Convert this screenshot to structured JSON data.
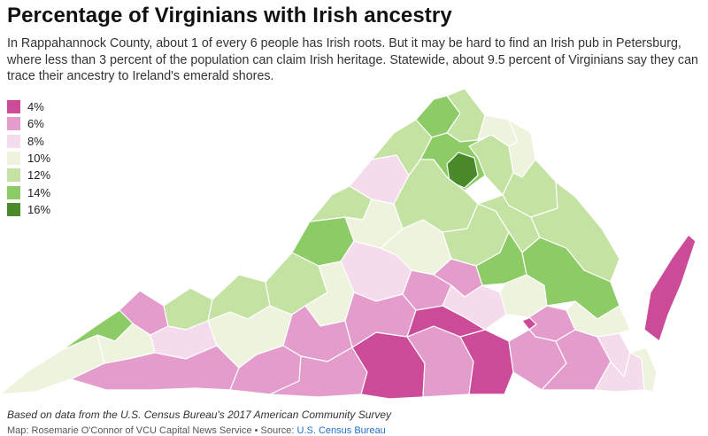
{
  "header": {
    "title": "Percentage of Virginians with Irish ancestry",
    "subtitle": "In Rappahannock County, about 1 of every 6 people has Irish roots. But it may be hard to find an Irish pub in Petersburg, where less than 3 percent of the population can claim Irish heritage. Statewide, about 9.5 percent of Virginians say they can trace their ancestry to Ireland's emerald shores."
  },
  "legend": [
    {
      "label": "4%",
      "color": "#cc4b99"
    },
    {
      "label": "6%",
      "color": "#e39ccc"
    },
    {
      "label": "8%",
      "color": "#f5dcec"
    },
    {
      "label": "10%",
      "color": "#eef3de"
    },
    {
      "label": "12%",
      "color": "#c4e3a3"
    },
    {
      "label": "14%",
      "color": "#8ccb66"
    },
    {
      "label": "16%",
      "color": "#4a8a2a"
    }
  ],
  "map": {
    "state_outline_color": "#ffffff",
    "regions": [
      {
        "name": "southwest-far",
        "bin": 3
      },
      {
        "name": "southwest-lee",
        "bin": 5
      },
      {
        "name": "southwest-wise",
        "bin": 3
      },
      {
        "name": "southwest-buchanan",
        "bin": 1
      },
      {
        "name": "southwest-tazewell",
        "bin": 4
      },
      {
        "name": "southwest-washington",
        "bin": 2
      },
      {
        "name": "southwest-grayson",
        "bin": 1
      },
      {
        "name": "southwest-smyth",
        "bin": 4
      },
      {
        "name": "new-river",
        "bin": 3
      },
      {
        "name": "roanoke",
        "bin": 4
      },
      {
        "name": "alleghany",
        "bin": 5
      },
      {
        "name": "highland",
        "bin": 4
      },
      {
        "name": "augusta",
        "bin": 3
      },
      {
        "name": "rockingham",
        "bin": 2
      },
      {
        "name": "shenandoah",
        "bin": 4
      },
      {
        "name": "frederick",
        "bin": 5
      },
      {
        "name": "loudoun",
        "bin": 4
      },
      {
        "name": "fauquier",
        "bin": 5
      },
      {
        "name": "rappahannock",
        "bin": 6
      },
      {
        "name": "culpeper",
        "bin": 4
      },
      {
        "name": "prince-william",
        "bin": 3
      },
      {
        "name": "fairfax",
        "bin": 3
      },
      {
        "name": "stafford",
        "bin": 4
      },
      {
        "name": "orange",
        "bin": 4
      },
      {
        "name": "albemarle",
        "bin": 3
      },
      {
        "name": "nelson",
        "bin": 2
      },
      {
        "name": "bedford",
        "bin": 3
      },
      {
        "name": "franklin",
        "bin": 1
      },
      {
        "name": "patrick",
        "bin": 1
      },
      {
        "name": "henry",
        "bin": 1
      },
      {
        "name": "pittsylvania",
        "bin": 0
      },
      {
        "name": "halifax",
        "bin": 1
      },
      {
        "name": "mecklenburg",
        "bin": 0
      },
      {
        "name": "lunenburg",
        "bin": 1
      },
      {
        "name": "nottoway",
        "bin": 0
      },
      {
        "name": "amelia",
        "bin": 1
      },
      {
        "name": "appomattox",
        "bin": 1
      },
      {
        "name": "buckingham",
        "bin": 2
      },
      {
        "name": "louisa",
        "bin": 4
      },
      {
        "name": "hanover",
        "bin": 4
      },
      {
        "name": "goochland",
        "bin": 5
      },
      {
        "name": "chesterfield",
        "bin": 3
      },
      {
        "name": "petersburg",
        "bin": 0
      },
      {
        "name": "prince-george",
        "bin": 1
      },
      {
        "name": "sussex",
        "bin": 1
      },
      {
        "name": "southampton",
        "bin": 1
      },
      {
        "name": "suffolk",
        "bin": 2
      },
      {
        "name": "chesapeake",
        "bin": 2
      },
      {
        "name": "virginia-beach",
        "bin": 3
      },
      {
        "name": "northern-neck",
        "bin": 4
      },
      {
        "name": "middle-peninsula",
        "bin": 5
      },
      {
        "name": "york",
        "bin": 3
      },
      {
        "name": "eastern-shore",
        "bin": 0
      }
    ]
  },
  "footer": {
    "note": "Based on data from the U.S. Census Bureau's 2017 American Community Survey",
    "credit": "Map: Rosemarie O'Connor of VCU Capital News Service • Source: ",
    "source_link": "U.S. Census Bureau"
  }
}
